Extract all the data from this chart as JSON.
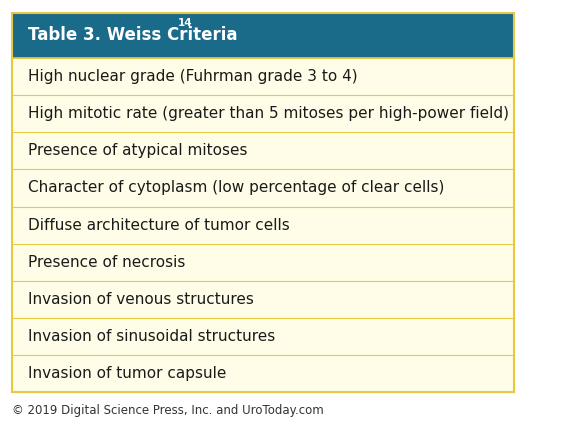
{
  "title": "Table 3. Weiss Criteria¹⁴",
  "title_superscript": "14",
  "title_plain": "Table 3. Weiss Criteria",
  "header_bg": "#1a6b8a",
  "header_text_color": "#ffffff",
  "row_bg_odd": "#fffde8",
  "row_bg_even": "#fffde8",
  "row_border_color": "#e8c840",
  "outer_border_color": "#e8c840",
  "text_color": "#1a1a1a",
  "footer_text": "© 2019 Digital Science Press, Inc. and UroToday.com",
  "footer_color": "#333333",
  "rows": [
    "High nuclear grade (Fuhrman grade 3 to 4)",
    "High mitotic rate (greater than 5 mitoses per high-power field)",
    "Presence of atypical mitoses",
    "Character of cytoplasm (low percentage of clear cells)",
    "Diffuse architecture of tumor cells",
    "Presence of necrosis",
    "Invasion of venous structures",
    "Invasion of sinusoidal structures",
    "Invasion of tumor capsule"
  ],
  "row_font_size": 11,
  "header_font_size": 12,
  "footer_font_size": 8.5
}
